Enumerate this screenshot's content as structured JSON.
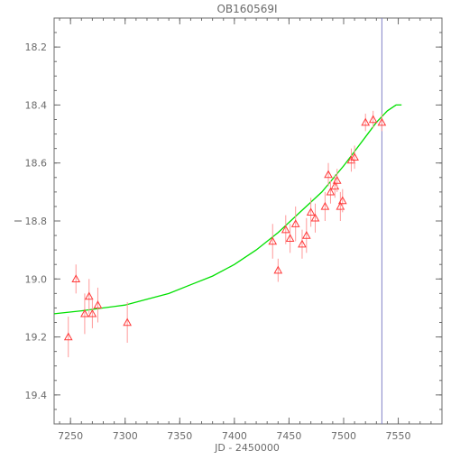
{
  "chart_data": {
    "type": "scatter",
    "title": "OB160569I",
    "xlabel": "JD - 2450000",
    "ylabel": "I",
    "xlim": [
      7235,
      7590
    ],
    "ylim": [
      19.5,
      18.1
    ],
    "y_inverted": true,
    "x_ticks": [
      7250,
      7300,
      7350,
      7400,
      7450,
      7500,
      7550
    ],
    "y_ticks": [
      18.2,
      18.4,
      18.6,
      18.8,
      19.0,
      19.2,
      19.4
    ],
    "x_minor_step": 10,
    "y_minor_step": 0.05,
    "grid": false,
    "series": [
      {
        "marker": "triangle-open",
        "color": "#ff3a3a",
        "points": [
          {
            "x": 7248,
            "y": 19.2,
            "err": 0.07
          },
          {
            "x": 7255,
            "y": 19.0,
            "err": 0.05
          },
          {
            "x": 7263,
            "y": 19.12,
            "err": 0.07
          },
          {
            "x": 7267,
            "y": 19.06,
            "err": 0.06
          },
          {
            "x": 7270,
            "y": 19.12,
            "err": 0.05
          },
          {
            "x": 7275,
            "y": 19.09,
            "err": 0.06
          },
          {
            "x": 7302,
            "y": 19.15,
            "err": 0.07
          },
          {
            "x": 7435,
            "y": 18.87,
            "err": 0.06
          },
          {
            "x": 7440,
            "y": 18.97,
            "err": 0.04
          },
          {
            "x": 7447,
            "y": 18.83,
            "err": 0.05
          },
          {
            "x": 7451,
            "y": 18.86,
            "err": 0.05
          },
          {
            "x": 7456,
            "y": 18.81,
            "err": 0.06
          },
          {
            "x": 7462,
            "y": 18.88,
            "err": 0.05
          },
          {
            "x": 7466,
            "y": 18.85,
            "err": 0.06
          },
          {
            "x": 7470,
            "y": 18.77,
            "err": 0.05
          },
          {
            "x": 7474,
            "y": 18.79,
            "err": 0.05
          },
          {
            "x": 7483,
            "y": 18.75,
            "err": 0.05
          },
          {
            "x": 7486,
            "y": 18.64,
            "err": 0.04
          },
          {
            "x": 7488,
            "y": 18.7,
            "err": 0.04
          },
          {
            "x": 7492,
            "y": 18.68,
            "err": 0.04
          },
          {
            "x": 7494,
            "y": 18.66,
            "err": 0.04
          },
          {
            "x": 7497,
            "y": 18.75,
            "err": 0.05
          },
          {
            "x": 7499,
            "y": 18.73,
            "err": 0.04
          },
          {
            "x": 7507,
            "y": 18.59,
            "err": 0.04
          },
          {
            "x": 7510,
            "y": 18.58,
            "err": 0.04
          },
          {
            "x": 7520,
            "y": 18.46,
            "err": 0.03
          },
          {
            "x": 7527,
            "y": 18.45,
            "err": 0.03
          },
          {
            "x": 7535,
            "y": 18.46,
            "err": 0.03
          }
        ]
      },
      {
        "type": "line",
        "color": "#00e000",
        "x": [
          7235,
          7260,
          7280,
          7300,
          7320,
          7340,
          7360,
          7380,
          7400,
          7420,
          7440,
          7460,
          7480,
          7500,
          7520,
          7530,
          7540,
          7548,
          7553
        ],
        "y": [
          19.12,
          19.11,
          19.1,
          19.09,
          19.07,
          19.05,
          19.02,
          18.99,
          18.95,
          18.9,
          18.84,
          18.77,
          18.7,
          18.61,
          18.51,
          18.46,
          18.42,
          18.4,
          18.4
        ]
      }
    ],
    "vline": {
      "x": 7535,
      "color": "#8080c8"
    }
  }
}
